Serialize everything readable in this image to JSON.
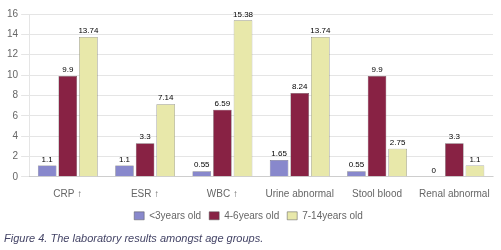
{
  "chart_data": {
    "type": "bar",
    "title": "Figure 4. The laboratory results amongst age groups.",
    "categories": [
      "CRP ↑",
      "ESR ↑",
      "WBC ↑",
      "Urine abnormal",
      "Stool blood",
      "Renal abnormal"
    ],
    "series": [
      {
        "name": "<3years old",
        "color": "#8888cc",
        "values": [
          1.1,
          1.1,
          0.55,
          1.65,
          0.55,
          0
        ]
      },
      {
        "name": "4-6years old",
        "color": "#882244",
        "values": [
          9.9,
          3.3,
          6.59,
          8.24,
          9.9,
          3.3
        ]
      },
      {
        "name": "7-14years old",
        "color": "#e8e8aa",
        "values": [
          13.74,
          7.14,
          15.38,
          13.74,
          2.75,
          1.1
        ]
      }
    ],
    "ylim": [
      0,
      16
    ],
    "yticks": [
      0,
      2,
      4,
      6,
      8,
      10,
      12,
      14,
      16
    ],
    "grid": true,
    "legend": "bottom",
    "data_labels": true
  }
}
